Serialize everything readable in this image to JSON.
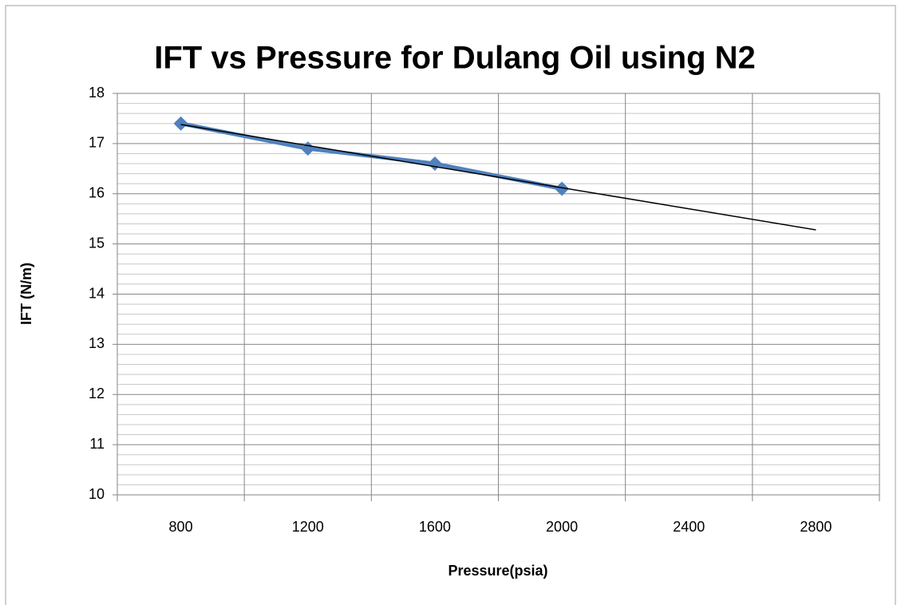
{
  "chart_data": {
    "type": "line",
    "title": "IFT vs Pressure for Dulang Oil using N2",
    "x_label": "Pressure(psia)",
    "y_label": "IFT (N/m)",
    "categories": [
      "800",
      "1200",
      "1600",
      "2000",
      "2400",
      "2800"
    ],
    "series": [
      {
        "color": "#4f81bd",
        "marker": "diamond",
        "values": [
          17.4,
          16.9,
          16.6,
          16.1,
          null,
          null
        ]
      },
      {
        "color": "#000000",
        "marker": "none",
        "trendline": "linear",
        "values": [
          17.38,
          16.96,
          16.54,
          16.12,
          15.7,
          15.28
        ]
      }
    ],
    "ylim": [
      10,
      18
    ],
    "yticks": [
      10,
      11,
      12,
      13,
      14,
      15,
      16,
      17,
      18
    ],
    "grid": true
  }
}
